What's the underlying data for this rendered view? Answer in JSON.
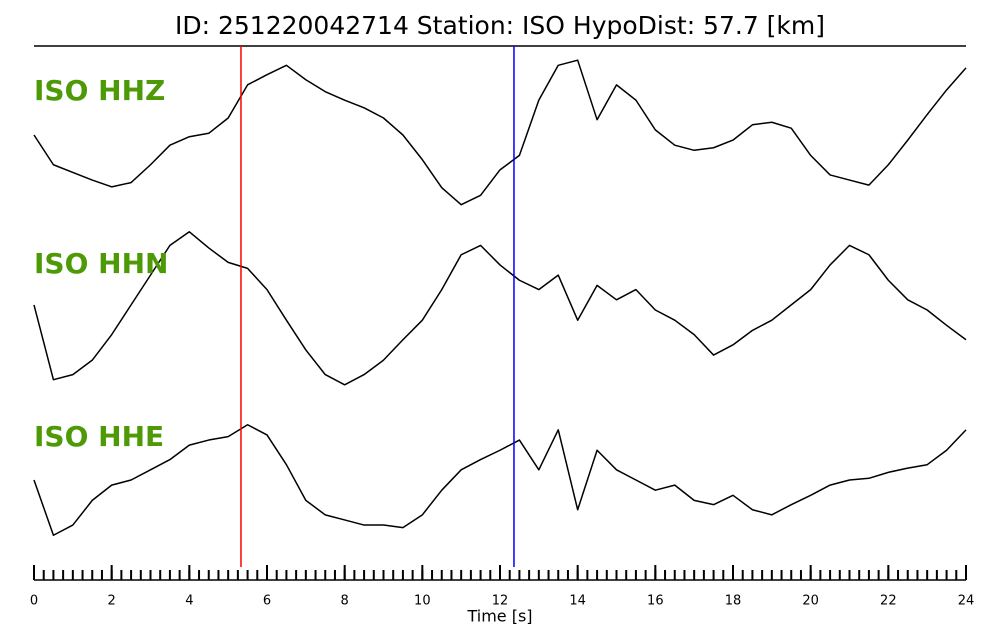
{
  "chart_data": {
    "type": "line",
    "title": "ID: 251220042714   Station: ISO   HypoDist:    57.7 [km]",
    "xlabel": "Time [s]",
    "x": [
      0,
      0.5,
      1,
      1.5,
      2,
      2.5,
      3,
      3.5,
      4,
      4.5,
      5,
      5.5,
      6,
      6.5,
      7,
      7.5,
      8,
      8.5,
      9,
      9.5,
      10,
      10.5,
      11,
      11.5,
      12,
      12.5,
      13,
      13.5,
      14,
      14.5,
      15,
      15.5,
      16,
      16.5,
      17,
      17.5,
      18,
      18.5,
      19,
      19.5,
      20,
      20.5,
      21,
      21.5,
      22,
      22.5,
      23,
      23.5,
      24
    ],
    "xlim": [
      0,
      24
    ],
    "xticks": [
      0,
      2,
      4,
      6,
      8,
      10,
      12,
      14,
      16,
      18,
      20,
      22,
      24
    ],
    "xminorticks": [
      0,
      0.25,
      0.5,
      0.75,
      1,
      1.25,
      1.5,
      1.75,
      2,
      2.25,
      2.5,
      2.75,
      3,
      3.25,
      3.5,
      3.75,
      4,
      4.25,
      4.5,
      4.75,
      5,
      5.25,
      5.5,
      5.75,
      6,
      6.25,
      6.5,
      6.75,
      7,
      7.25,
      7.5,
      7.75,
      8,
      8.25,
      8.5,
      8.75,
      9,
      9.25,
      9.5,
      9.75,
      10,
      10.25,
      10.5,
      10.75,
      11,
      11.25,
      11.5,
      11.75,
      12,
      12.25,
      12.5,
      12.75,
      13,
      13.25,
      13.5,
      13.75,
      14,
      14.25,
      14.5,
      14.75,
      15,
      15.25,
      15.5,
      15.75,
      16,
      16.25,
      16.5,
      16.75,
      17,
      17.25,
      17.5,
      17.75,
      18,
      18.25,
      18.5,
      18.75,
      19,
      19.25,
      19.5,
      19.75,
      20,
      20.25,
      20.5,
      20.75,
      21,
      21.25,
      21.5,
      21.75,
      22,
      22.25,
      22.5,
      22.75,
      23,
      23.25,
      23.5,
      23.75,
      24
    ],
    "ylim": [
      -1,
      1
    ],
    "label_color": "#4e9a06",
    "series": [
      {
        "name": "ISO HHZ",
        "color": "#000000",
        "values": [
          0,
          -0.35,
          -0.44,
          -0.53,
          -0.61,
          -0.56,
          -0.35,
          -0.12,
          -0.02,
          0.02,
          0.2,
          0.59,
          0.71,
          0.82,
          0.65,
          0.51,
          0.41,
          0.32,
          0.2,
          0,
          -0.29,
          -0.62,
          -0.82,
          -0.71,
          -0.41,
          -0.24,
          0.41,
          0.82,
          0.88,
          0.18,
          0.59,
          0.41,
          0.06,
          -0.12,
          -0.18,
          -0.15,
          -0.06,
          0.12,
          0.15,
          0.08,
          -0.24,
          -0.47,
          -0.53,
          -0.59,
          -0.35,
          -0.06,
          0.24,
          0.53,
          0.79
        ]
      },
      {
        "name": "ISO HHN",
        "color": "#000000",
        "values": [
          0.06,
          -0.82,
          -0.76,
          -0.59,
          -0.29,
          0.06,
          0.41,
          0.76,
          0.92,
          0.73,
          0.56,
          0.49,
          0.24,
          -0.12,
          -0.47,
          -0.76,
          -0.88,
          -0.76,
          -0.59,
          -0.35,
          -0.12,
          0.24,
          0.65,
          0.76,
          0.53,
          0.35,
          0.24,
          0.41,
          -0.12,
          0.29,
          0.12,
          0.24,
          0,
          -0.12,
          -0.29,
          -0.53,
          -0.41,
          -0.24,
          -0.12,
          0.06,
          0.24,
          0.53,
          0.76,
          0.65,
          0.35,
          0.12,
          0,
          -0.18,
          -0.35
        ]
      },
      {
        "name": "ISO HHE",
        "color": "#000000",
        "values": [
          0,
          -0.65,
          -0.53,
          -0.24,
          -0.06,
          0,
          0.12,
          0.24,
          0.41,
          0.47,
          0.51,
          0.65,
          0.53,
          0.18,
          -0.24,
          -0.41,
          -0.47,
          -0.53,
          -0.53,
          -0.56,
          -0.41,
          -0.12,
          0.12,
          0.24,
          0.35,
          0.47,
          0.12,
          0.59,
          -0.35,
          0.35,
          0.12,
          0,
          -0.12,
          -0.06,
          -0.24,
          -0.29,
          -0.18,
          -0.35,
          -0.41,
          -0.29,
          -0.18,
          -0.06,
          0,
          0.02,
          0.09,
          0.14,
          0.18,
          0.35,
          0.59
        ]
      }
    ],
    "markers": [
      {
        "x": 5.33,
        "color": "#ff0000"
      },
      {
        "x": 12.36,
        "color": "#0000ff"
      }
    ]
  }
}
